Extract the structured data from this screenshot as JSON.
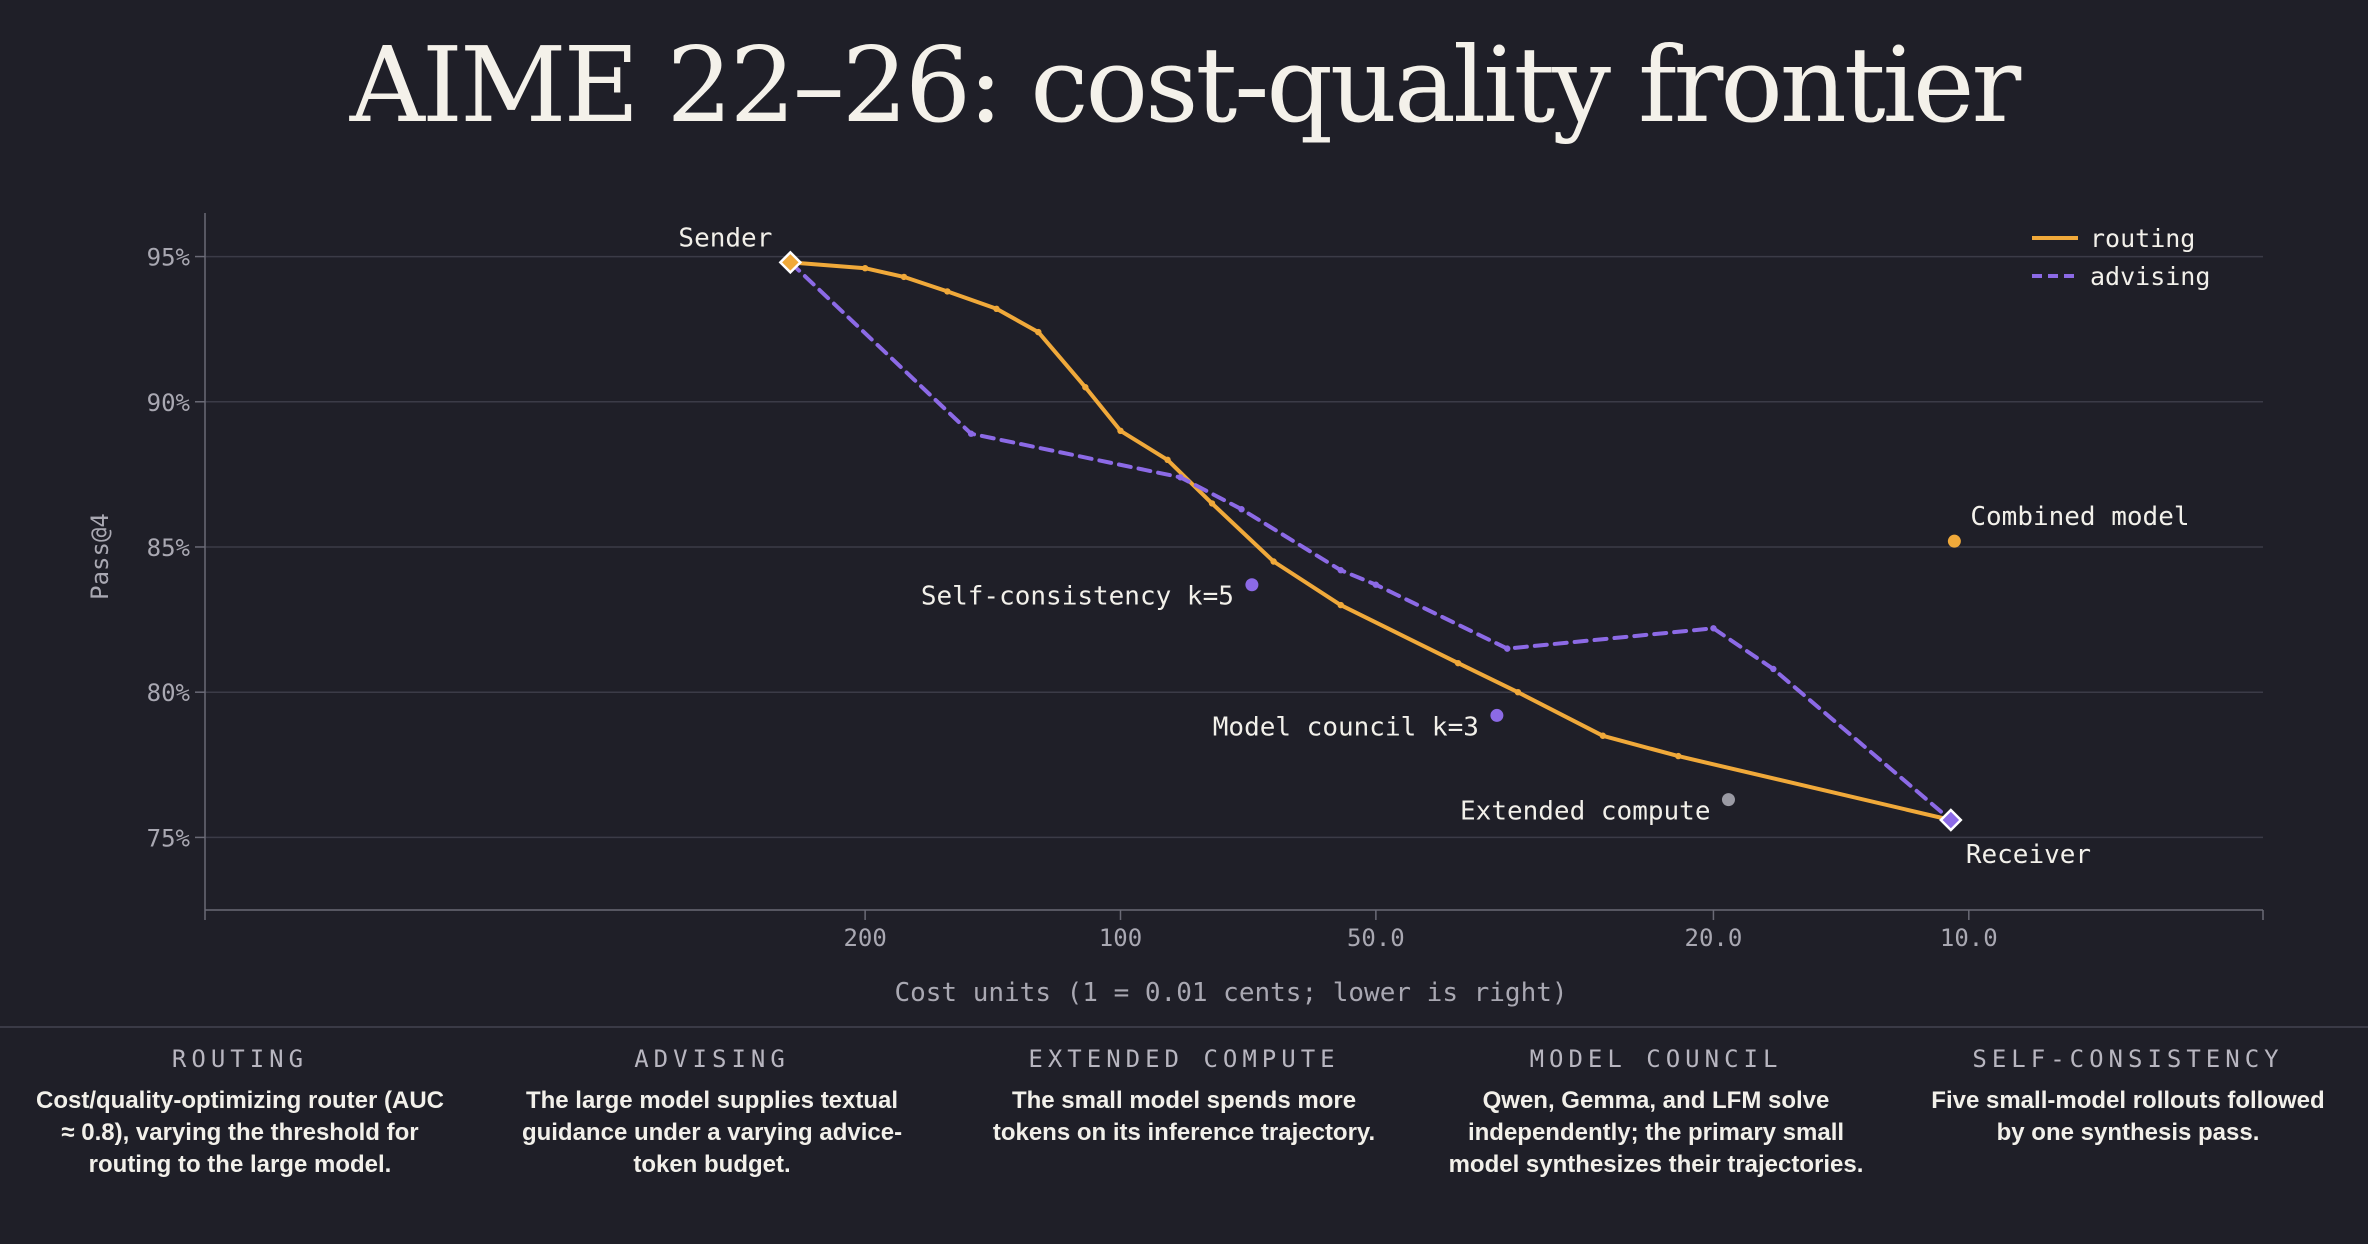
{
  "title": "AIME 22–26: cost-quality frontier",
  "chart_data": {
    "type": "line",
    "xlabel": "Cost units (1 = 0.01 cents; lower is right)",
    "ylabel": "Pass@4",
    "x_scale": "log",
    "x_reversed": true,
    "xlim": [
      1200,
      4.5
    ],
    "ylim": [
      72.5,
      96.5
    ],
    "x_ticks": [
      {
        "value": 200,
        "label": "200"
      },
      {
        "value": 100,
        "label": "100"
      },
      {
        "value": 50,
        "label": "50.0"
      },
      {
        "value": 20,
        "label": "20.0"
      },
      {
        "value": 10,
        "label": "10.0"
      }
    ],
    "y_ticks": [
      {
        "value": 95,
        "label": "95%"
      },
      {
        "value": 90,
        "label": "90%"
      },
      {
        "value": 85,
        "label": "85%"
      },
      {
        "value": 80,
        "label": "80%"
      },
      {
        "value": 75,
        "label": "75%"
      }
    ],
    "grid": "horizontal",
    "legend_position": "top-right",
    "series": [
      {
        "name": "routing",
        "color": "#f0a93a",
        "dash": "solid",
        "points": [
          [
            245,
            94.8
          ],
          [
            200,
            94.6
          ],
          [
            180,
            94.3
          ],
          [
            160,
            93.8
          ],
          [
            140,
            93.2
          ],
          [
            125,
            92.4
          ],
          [
            110,
            90.5
          ],
          [
            100,
            89.0
          ],
          [
            88,
            88.0
          ],
          [
            78,
            86.5
          ],
          [
            66,
            84.5
          ],
          [
            55,
            83.0
          ],
          [
            40,
            81.0
          ],
          [
            34,
            80.0
          ],
          [
            27,
            78.5
          ],
          [
            22,
            77.8
          ],
          [
            10.5,
            75.6
          ]
        ]
      },
      {
        "name": "advising",
        "color": "#8c6ae6",
        "dash": "dashed",
        "points": [
          [
            245,
            94.8
          ],
          [
            150,
            88.9
          ],
          [
            85,
            87.4
          ],
          [
            72,
            86.3
          ],
          [
            55,
            84.2
          ],
          [
            50,
            83.7
          ],
          [
            35,
            81.5
          ],
          [
            20,
            82.2
          ],
          [
            17,
            80.8
          ],
          [
            10.5,
            75.6
          ]
        ]
      }
    ],
    "endpoints": [
      {
        "label": "Sender",
        "x": 245,
        "y": 94.8,
        "color": "#f0a93a"
      },
      {
        "label": "Receiver",
        "x": 10.5,
        "y": 75.6,
        "color": "#8c6ae6"
      }
    ],
    "baselines": [
      {
        "label": "Combined model",
        "x": 10.4,
        "y": 85.2,
        "color": "#f0a93a"
      },
      {
        "label": "Self-consistency k=5",
        "x": 70,
        "y": 83.7,
        "color": "#8c6ae6"
      },
      {
        "label": "Model council k=3",
        "x": 36,
        "y": 79.2,
        "color": "#8c6ae6"
      },
      {
        "label": "Extended compute",
        "x": 19.2,
        "y": 76.3,
        "color": "#9a9aa4"
      }
    ]
  },
  "methods": [
    {
      "name": "ROUTING",
      "description": "Cost/quality-optimizing router (AUC ≈ 0.8), varying the threshold for routing to the large model."
    },
    {
      "name": "ADVISING",
      "description": "The large model supplies textual guidance under a varying advice-token budget."
    },
    {
      "name": "EXTENDED COMPUTE",
      "description": "The small model spends more tokens on its inference trajectory."
    },
    {
      "name": "MODEL COUNCIL",
      "description": "Qwen, Gemma, and LFM solve independently; the primary small model synthesizes their trajectories."
    },
    {
      "name": "SELF-CONSISTENCY",
      "description": "Five small-model rollouts followed by one synthesis pass."
    }
  ]
}
